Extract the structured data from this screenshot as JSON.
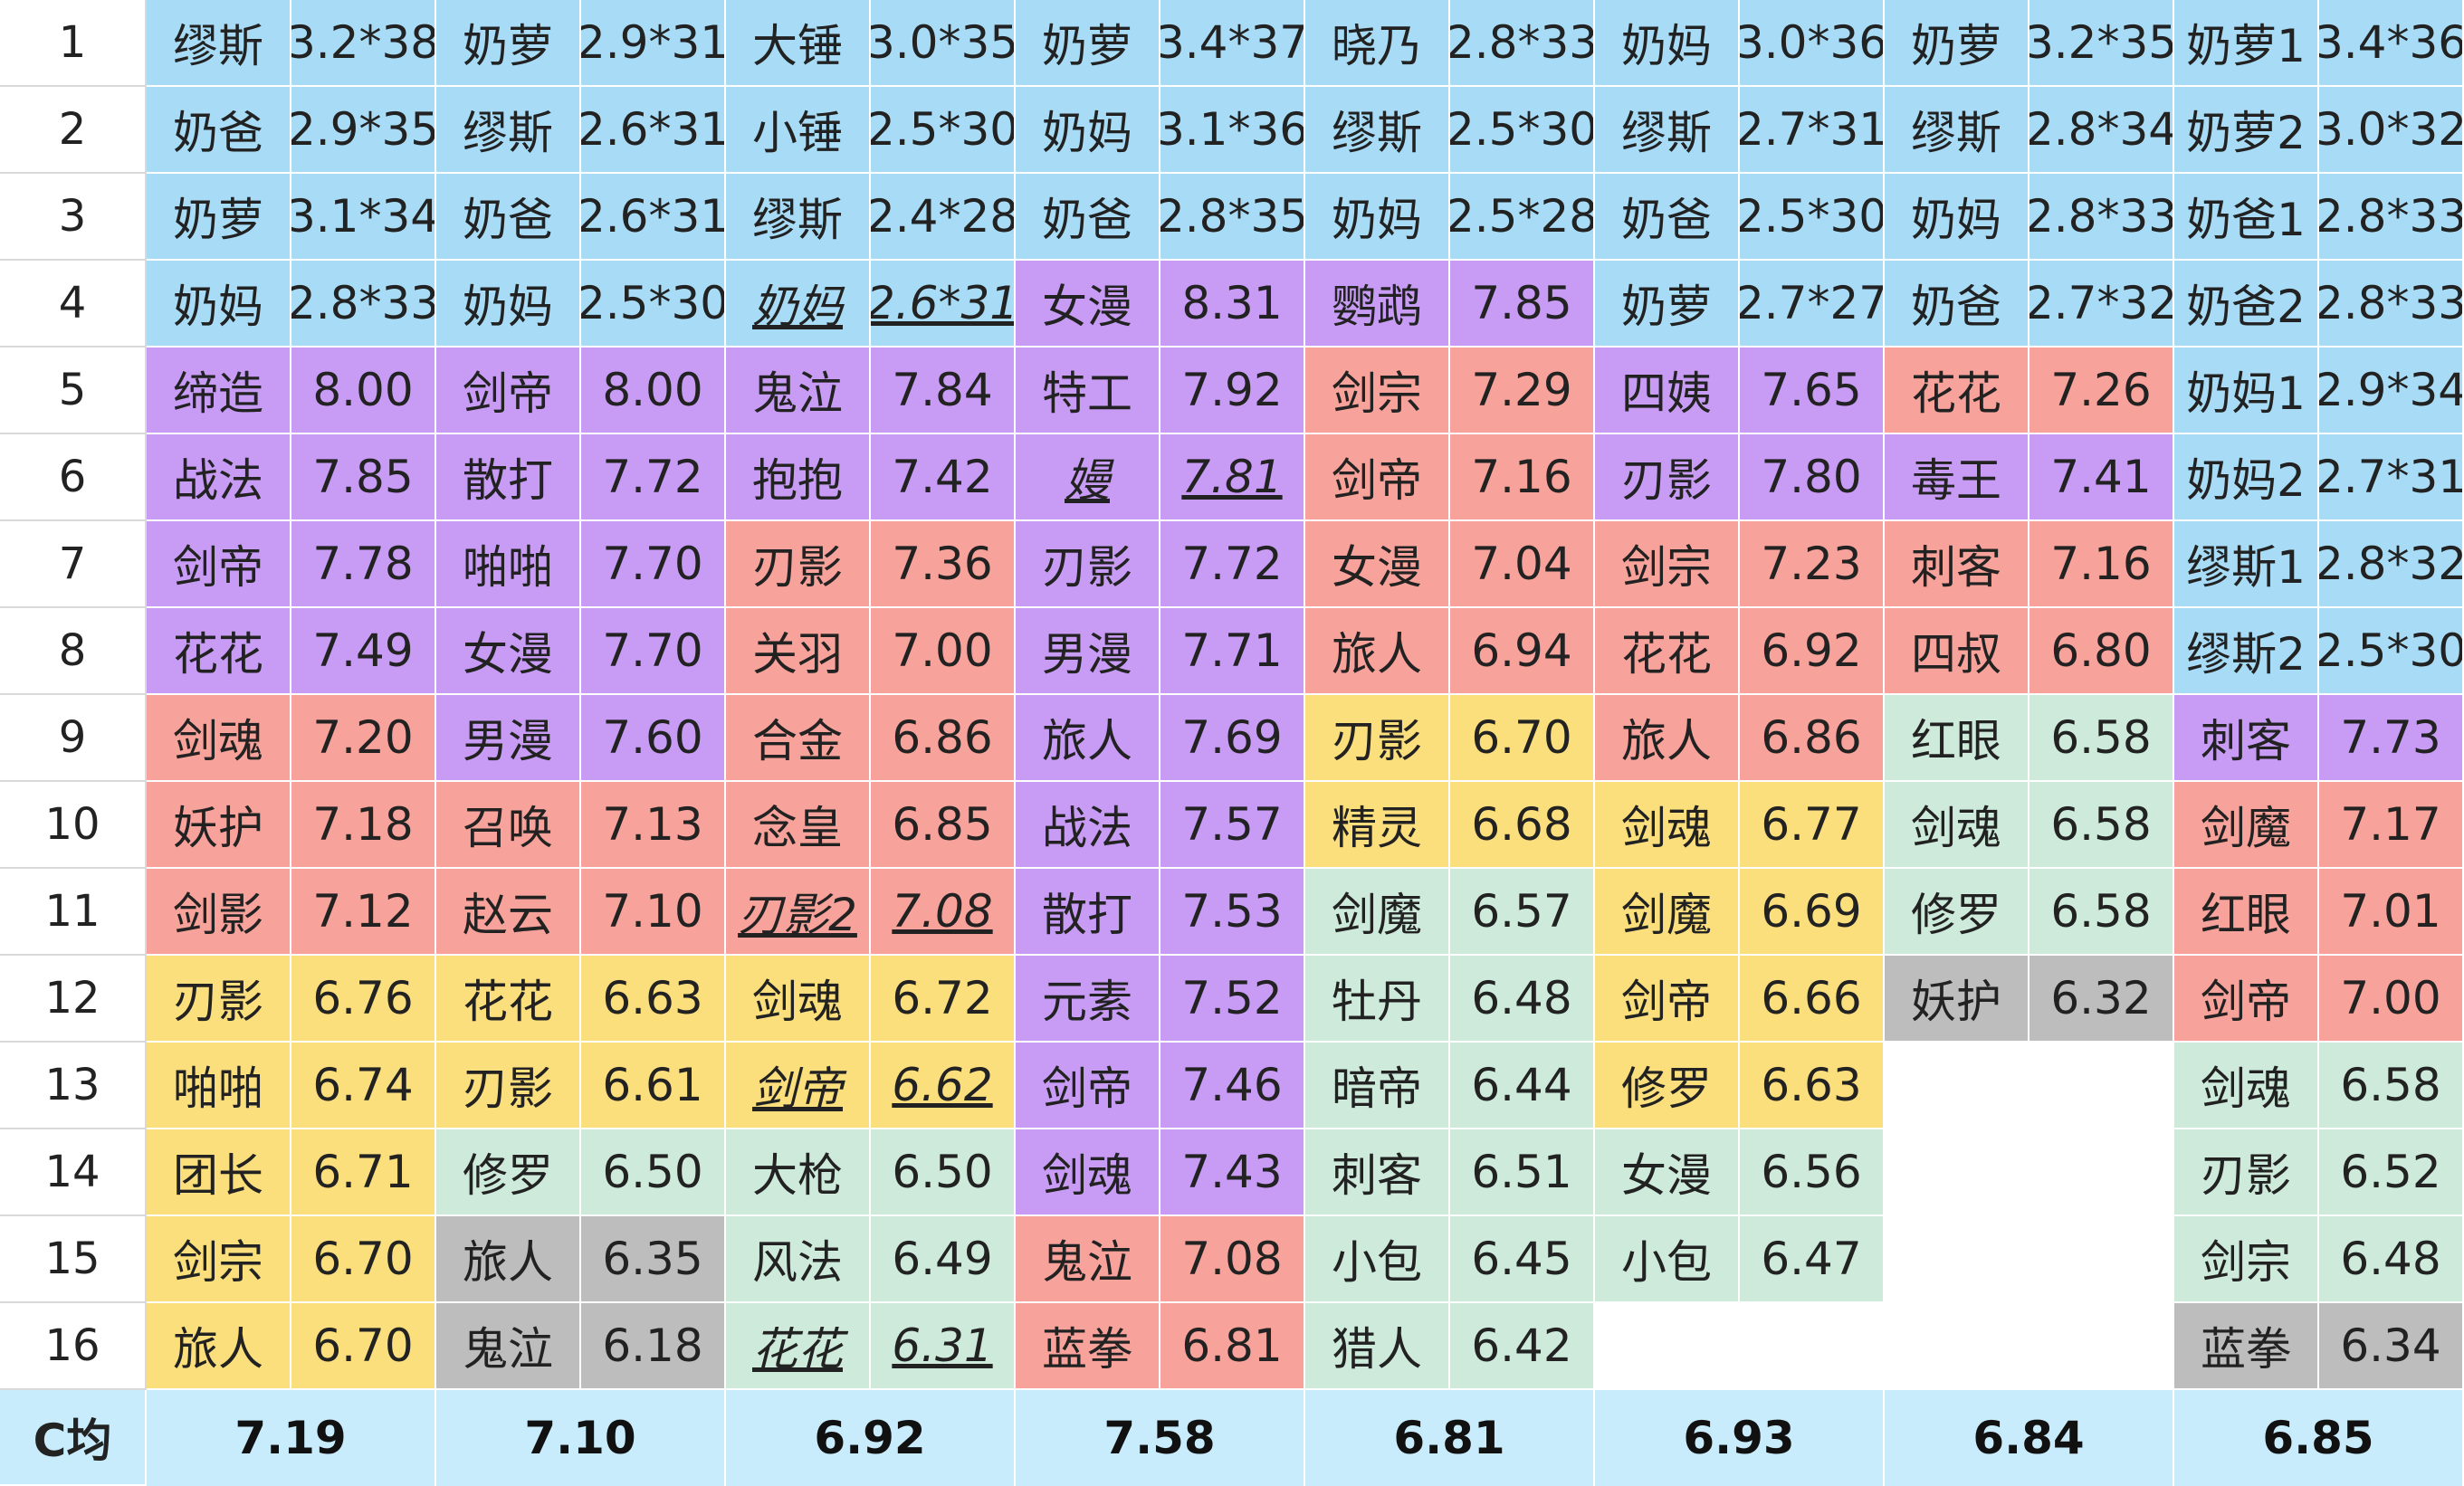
{
  "colors": {
    "blue": "#a8dcf6",
    "purple": "#c89cf5",
    "red": "#f7a29a",
    "yellow": "#fbdf7d",
    "green": "#cdeadb",
    "gray": "#bdbdbd",
    "white": "#ffffff",
    "avg_bg": "#c8ecfb"
  },
  "row_numbers": [
    "1",
    "2",
    "3",
    "4",
    "5",
    "6",
    "7",
    "8",
    "9",
    "10",
    "11",
    "12",
    "13",
    "14",
    "15",
    "16"
  ],
  "grid": [
    [
      [
        "缪斯",
        "3.2*38",
        "blue"
      ],
      [
        "奶萝",
        "2.9*31",
        "blue"
      ],
      [
        "大锤",
        "3.0*35",
        "blue"
      ],
      [
        "奶萝",
        "3.4*37",
        "blue"
      ],
      [
        "晓乃",
        "2.8*33",
        "blue"
      ],
      [
        "奶妈",
        "3.0*36",
        "blue"
      ],
      [
        "奶萝",
        "3.2*35",
        "blue"
      ],
      [
        "奶萝1",
        "3.4*36",
        "blue"
      ]
    ],
    [
      [
        "奶爸",
        "2.9*35",
        "blue"
      ],
      [
        "缪斯",
        "2.6*31",
        "blue"
      ],
      [
        "小锤",
        "2.5*30",
        "blue"
      ],
      [
        "奶妈",
        "3.1*36",
        "blue"
      ],
      [
        "缪斯",
        "2.5*30",
        "blue"
      ],
      [
        "缪斯",
        "2.7*31",
        "blue"
      ],
      [
        "缪斯",
        "2.8*34",
        "blue"
      ],
      [
        "奶萝2",
        "3.0*32",
        "blue"
      ]
    ],
    [
      [
        "奶萝",
        "3.1*34",
        "blue"
      ],
      [
        "奶爸",
        "2.6*31",
        "blue"
      ],
      [
        "缪斯",
        "2.4*28",
        "blue"
      ],
      [
        "奶爸",
        "2.8*35",
        "blue"
      ],
      [
        "奶妈",
        "2.5*28",
        "blue"
      ],
      [
        "奶爸",
        "2.5*30",
        "blue"
      ],
      [
        "奶妈",
        "2.8*33",
        "blue"
      ],
      [
        "奶爸1",
        "2.8*33",
        "blue"
      ]
    ],
    [
      [
        "奶妈",
        "2.8*33",
        "blue"
      ],
      [
        "奶妈",
        "2.5*30",
        "blue"
      ],
      [
        "奶妈",
        "2.6*31",
        "blue",
        true
      ],
      [
        "女漫",
        "8.31",
        "purple"
      ],
      [
        "鹦鹉",
        "7.85",
        "purple"
      ],
      [
        "奶萝",
        "2.7*27",
        "blue"
      ],
      [
        "奶爸",
        "2.7*32",
        "blue"
      ],
      [
        "奶爸2",
        "2.8*33",
        "blue"
      ]
    ],
    [
      [
        "缔造",
        "8.00",
        "purple"
      ],
      [
        "剑帝",
        "8.00",
        "purple"
      ],
      [
        "鬼泣",
        "7.84",
        "purple"
      ],
      [
        "特工",
        "7.92",
        "purple"
      ],
      [
        "剑宗",
        "7.29",
        "red"
      ],
      [
        "四姨",
        "7.65",
        "purple"
      ],
      [
        "花花",
        "7.26",
        "red"
      ],
      [
        "奶妈1",
        "2.9*34",
        "blue"
      ]
    ],
    [
      [
        "战法",
        "7.85",
        "purple"
      ],
      [
        "散打",
        "7.72",
        "purple"
      ],
      [
        "抱抱",
        "7.42",
        "purple"
      ],
      [
        "嫚",
        "7.81",
        "purple",
        true
      ],
      [
        "剑帝",
        "7.16",
        "red"
      ],
      [
        "刃影",
        "7.80",
        "purple"
      ],
      [
        "毒王",
        "7.41",
        "purple"
      ],
      [
        "奶妈2",
        "2.7*31",
        "blue"
      ]
    ],
    [
      [
        "剑帝",
        "7.78",
        "purple"
      ],
      [
        "啪啪",
        "7.70",
        "purple"
      ],
      [
        "刃影",
        "7.36",
        "red"
      ],
      [
        "刃影",
        "7.72",
        "purple"
      ],
      [
        "女漫",
        "7.04",
        "red"
      ],
      [
        "剑宗",
        "7.23",
        "red"
      ],
      [
        "刺客",
        "7.16",
        "red"
      ],
      [
        "缪斯1",
        "2.8*32",
        "blue"
      ]
    ],
    [
      [
        "花花",
        "7.49",
        "purple"
      ],
      [
        "女漫",
        "7.70",
        "purple"
      ],
      [
        "关羽",
        "7.00",
        "red"
      ],
      [
        "男漫",
        "7.71",
        "purple"
      ],
      [
        "旅人",
        "6.94",
        "red"
      ],
      [
        "花花",
        "6.92",
        "red"
      ],
      [
        "四叔",
        "6.80",
        "red"
      ],
      [
        "缪斯2",
        "2.5*30",
        "blue"
      ]
    ],
    [
      [
        "剑魂",
        "7.20",
        "red"
      ],
      [
        "男漫",
        "7.60",
        "purple"
      ],
      [
        "合金",
        "6.86",
        "red"
      ],
      [
        "旅人",
        "7.69",
        "purple"
      ],
      [
        "刃影",
        "6.70",
        "yellow"
      ],
      [
        "旅人",
        "6.86",
        "red"
      ],
      [
        "红眼",
        "6.58",
        "green"
      ],
      [
        "刺客",
        "7.73",
        "purple"
      ]
    ],
    [
      [
        "妖护",
        "7.18",
        "red"
      ],
      [
        "召唤",
        "7.13",
        "red"
      ],
      [
        "念皇",
        "6.85",
        "red"
      ],
      [
        "战法",
        "7.57",
        "purple"
      ],
      [
        "精灵",
        "6.68",
        "yellow"
      ],
      [
        "剑魂",
        "6.77",
        "yellow"
      ],
      [
        "剑魂",
        "6.58",
        "green"
      ],
      [
        "剑魔",
        "7.17",
        "red"
      ]
    ],
    [
      [
        "剑影",
        "7.12",
        "red"
      ],
      [
        "赵云",
        "7.10",
        "red"
      ],
      [
        "刃影2",
        "7.08",
        "red",
        true
      ],
      [
        "散打",
        "7.53",
        "purple"
      ],
      [
        "剑魔",
        "6.57",
        "green"
      ],
      [
        "剑魔",
        "6.69",
        "yellow"
      ],
      [
        "修罗",
        "6.58",
        "green"
      ],
      [
        "红眼",
        "7.01",
        "red"
      ]
    ],
    [
      [
        "刃影",
        "6.76",
        "yellow"
      ],
      [
        "花花",
        "6.63",
        "yellow"
      ],
      [
        "剑魂",
        "6.72",
        "yellow"
      ],
      [
        "元素",
        "7.52",
        "purple"
      ],
      [
        "牡丹",
        "6.48",
        "green"
      ],
      [
        "剑帝",
        "6.66",
        "yellow"
      ],
      [
        "妖护",
        "6.32",
        "gray"
      ],
      [
        "剑帝",
        "7.00",
        "red"
      ]
    ],
    [
      [
        "啪啪",
        "6.74",
        "yellow"
      ],
      [
        "刃影",
        "6.61",
        "yellow"
      ],
      [
        "剑帝",
        "6.62",
        "yellow",
        true
      ],
      [
        "剑帝",
        "7.46",
        "purple"
      ],
      [
        "暗帝",
        "6.44",
        "green"
      ],
      [
        "修罗",
        "6.63",
        "yellow"
      ],
      [
        "",
        "",
        "white"
      ],
      [
        "剑魂",
        "6.58",
        "green"
      ]
    ],
    [
      [
        "团长",
        "6.71",
        "yellow"
      ],
      [
        "修罗",
        "6.50",
        "green"
      ],
      [
        "大枪",
        "6.50",
        "green"
      ],
      [
        "剑魂",
        "7.43",
        "purple"
      ],
      [
        "刺客",
        "6.51",
        "green"
      ],
      [
        "女漫",
        "6.56",
        "green"
      ],
      [
        "",
        "",
        "white"
      ],
      [
        "刃影",
        "6.52",
        "green"
      ]
    ],
    [
      [
        "剑宗",
        "6.70",
        "yellow"
      ],
      [
        "旅人",
        "6.35",
        "gray"
      ],
      [
        "风法",
        "6.49",
        "green"
      ],
      [
        "鬼泣",
        "7.08",
        "red"
      ],
      [
        "小包",
        "6.45",
        "green"
      ],
      [
        "小包",
        "6.47",
        "green"
      ],
      [
        "",
        "",
        "white"
      ],
      [
        "剑宗",
        "6.48",
        "green"
      ]
    ],
    [
      [
        "旅人",
        "6.70",
        "yellow"
      ],
      [
        "鬼泣",
        "6.18",
        "gray"
      ],
      [
        "花花",
        "6.31",
        "green",
        true
      ],
      [
        "蓝拳",
        "6.81",
        "red"
      ],
      [
        "猎人",
        "6.42",
        "green"
      ],
      [
        "",
        "",
        "white"
      ],
      [
        "",
        "",
        "white"
      ],
      [
        "蓝拳",
        "6.34",
        "gray"
      ]
    ]
  ],
  "footer": {
    "label": "C均",
    "averages": [
      "7.19",
      "7.10",
      "6.92",
      "7.58",
      "6.81",
      "6.93",
      "6.84",
      "6.85"
    ]
  }
}
